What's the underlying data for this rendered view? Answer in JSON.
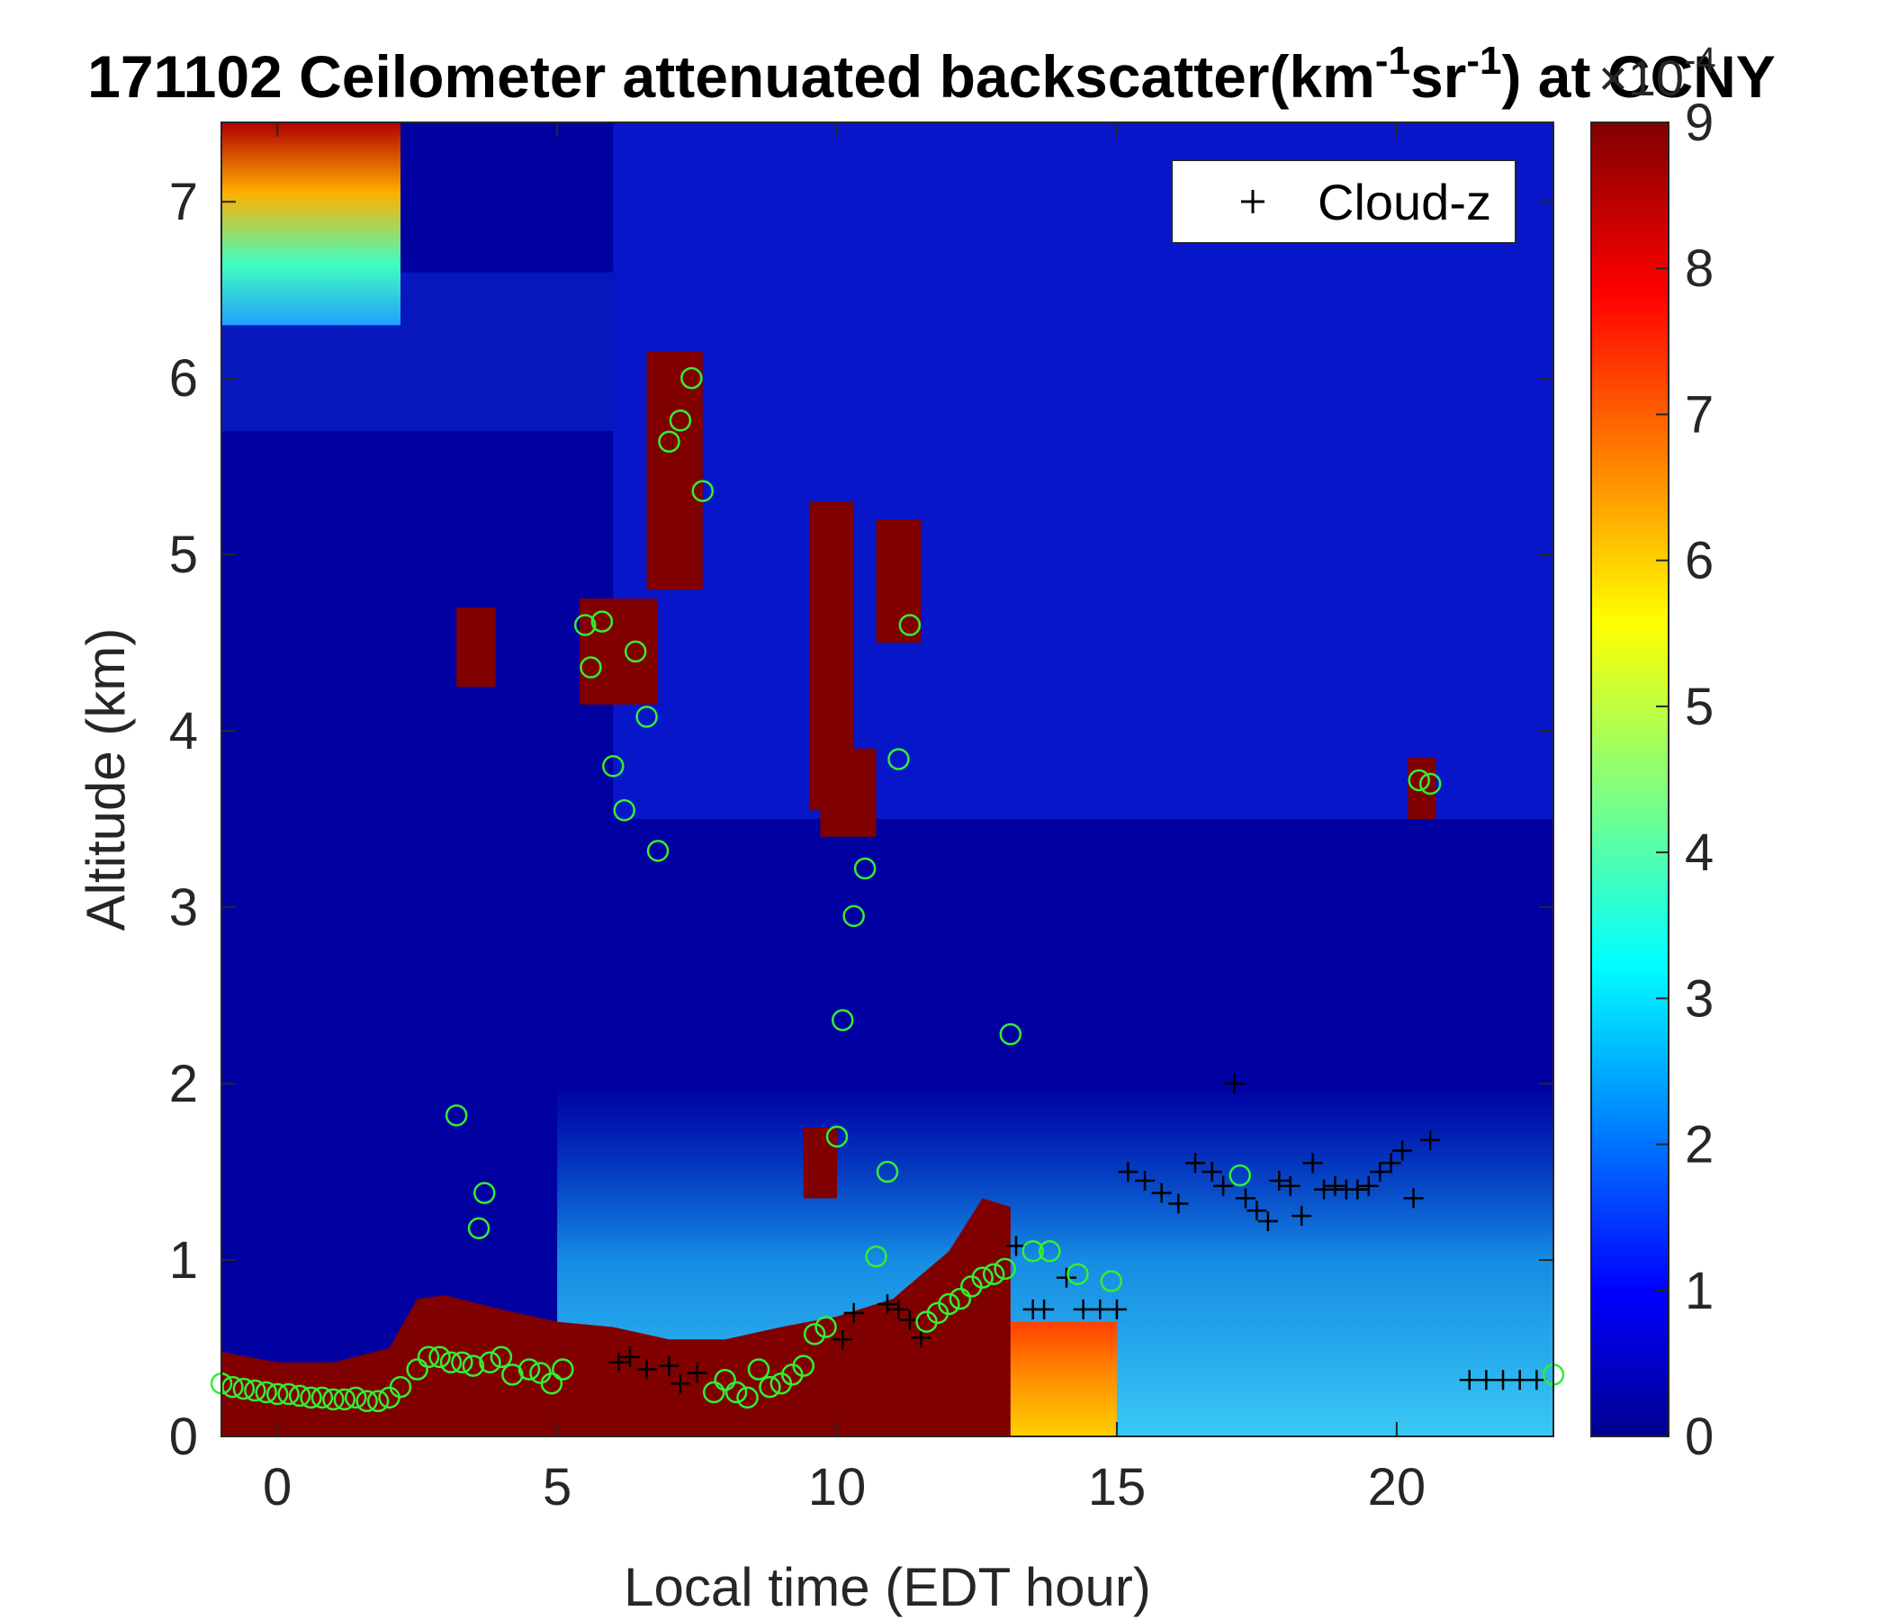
{
  "chart_data": {
    "type": "heatmap",
    "title_prefix": "171102 Ceilometer attenuated backscatter(km",
    "title_sup1": "-1",
    "title_mid": "sr",
    "title_sup2": "-1",
    "title_suffix": ") at CCNY",
    "xlabel": "Local time (EDT hour)",
    "ylabel": "Altitude (km)",
    "xlim": [
      -1,
      22.8
    ],
    "ylim": [
      0,
      7.45
    ],
    "xticks": [
      "0",
      "5",
      "10",
      "15",
      "20"
    ],
    "xtick_values": [
      0,
      5,
      10,
      15,
      20
    ],
    "yticks": [
      "0",
      "1",
      "2",
      "3",
      "4",
      "5",
      "6",
      "7"
    ],
    "ytick_values": [
      0,
      1,
      2,
      3,
      4,
      5,
      6,
      7
    ],
    "colorbar": {
      "ticks": [
        "0",
        "1",
        "2",
        "3",
        "4",
        "5",
        "6",
        "7",
        "8",
        "9"
      ],
      "tick_values": [
        0,
        1,
        2,
        3,
        4,
        5,
        6,
        7,
        8,
        9
      ],
      "range": [
        0,
        9
      ],
      "multiplier_base": "×10",
      "multiplier_exp": "-4",
      "colormap": "jet"
    },
    "legend": {
      "entries": [
        "Cloud-z"
      ],
      "location": "top-right",
      "marker": "+"
    },
    "boundary_layer_top": [
      [
        -1,
        0.48
      ],
      [
        0,
        0.42
      ],
      [
        1,
        0.42
      ],
      [
        2,
        0.5
      ],
      [
        2.5,
        0.78
      ],
      [
        3,
        0.8
      ],
      [
        4,
        0.72
      ],
      [
        5,
        0.65
      ],
      [
        6,
        0.62
      ],
      [
        7,
        0.55
      ],
      [
        8,
        0.55
      ],
      [
        9,
        0.62
      ],
      [
        10,
        0.68
      ],
      [
        11,
        0.78
      ],
      [
        12,
        1.05
      ],
      [
        12.6,
        1.35
      ],
      [
        13.1,
        1.3
      ]
    ],
    "aerosol_layers": [
      {
        "x": [
          3.2,
          3.9
        ],
        "y": [
          4.25,
          4.7
        ]
      },
      {
        "x": [
          5.4,
          6.8
        ],
        "y": [
          4.15,
          4.75
        ]
      },
      {
        "x": [
          6.6,
          7.6
        ],
        "y": [
          4.8,
          6.15
        ]
      },
      {
        "x": [
          9.5,
          10.3
        ],
        "y": [
          3.55,
          5.3
        ]
      },
      {
        "x": [
          9.7,
          10.7
        ],
        "y": [
          3.4,
          3.9
        ]
      },
      {
        "x": [
          10.7,
          11.5
        ],
        "y": [
          4.5,
          5.2
        ]
      },
      {
        "x": [
          9.4,
          10.0
        ],
        "y": [
          1.35,
          1.75
        ]
      },
      {
        "x": [
          20.2,
          20.7
        ],
        "y": [
          3.5,
          3.85
        ]
      }
    ],
    "series": [
      {
        "name": "Cloud-z",
        "marker": "+",
        "x": [
          6.1,
          6.3,
          6.6,
          7.0,
          7.2,
          7.5,
          10.1,
          10.3,
          10.9,
          11.1,
          11.3,
          11.5,
          13.2,
          13.5,
          13.7,
          14.1,
          14.4,
          14.7,
          15.0,
          15.2,
          15.5,
          15.8,
          16.1,
          16.4,
          16.7,
          16.9,
          17.1,
          17.3,
          17.5,
          17.7,
          17.9,
          18.1,
          18.3,
          18.5,
          18.7,
          18.9,
          19.1,
          19.3,
          19.5,
          19.7,
          19.9,
          20.1,
          20.3,
          20.6,
          21.3,
          21.6,
          21.9,
          22.2,
          22.5
        ],
        "y": [
          0.42,
          0.45,
          0.38,
          0.4,
          0.3,
          0.36,
          0.55,
          0.7,
          0.75,
          0.72,
          0.66,
          0.56,
          1.08,
          0.72,
          0.72,
          0.9,
          0.72,
          0.72,
          0.72,
          1.5,
          1.45,
          1.38,
          1.32,
          1.55,
          1.5,
          1.42,
          2.0,
          1.35,
          1.28,
          1.22,
          1.45,
          1.42,
          1.25,
          1.55,
          1.4,
          1.42,
          1.4,
          1.4,
          1.42,
          1.5,
          1.55,
          1.62,
          1.35,
          1.68,
          0.32,
          0.32,
          0.32,
          0.32,
          0.32
        ]
      },
      {
        "name": "",
        "marker": "o",
        "x": [
          -1.0,
          -0.8,
          -0.6,
          -0.4,
          -0.2,
          0.0,
          0.2,
          0.4,
          0.6,
          0.8,
          1.0,
          1.2,
          1.4,
          1.6,
          1.8,
          2.0,
          2.2,
          2.5,
          2.7,
          2.9,
          3.1,
          3.3,
          3.5,
          3.8,
          4.0,
          4.2,
          4.5,
          4.7,
          4.9,
          5.1,
          3.2,
          3.6,
          3.7,
          5.5,
          5.6,
          5.8,
          6.0,
          6.2,
          6.4,
          6.6,
          6.8,
          7.0,
          7.2,
          7.4,
          7.6,
          7.8,
          8.0,
          8.2,
          8.4,
          8.6,
          8.8,
          9.0,
          9.2,
          9.4,
          9.6,
          9.8,
          10.0,
          10.1,
          10.3,
          10.5,
          10.7,
          10.9,
          11.1,
          11.3,
          11.6,
          11.8,
          12.0,
          12.2,
          12.4,
          12.6,
          12.8,
          13.0,
          13.1,
          13.5,
          13.8,
          14.3,
          14.9,
          17.2,
          20.4,
          20.6,
          22.8
        ],
        "y": [
          0.3,
          0.28,
          0.27,
          0.26,
          0.25,
          0.24,
          0.24,
          0.23,
          0.22,
          0.22,
          0.21,
          0.21,
          0.22,
          0.2,
          0.2,
          0.22,
          0.28,
          0.38,
          0.45,
          0.45,
          0.42,
          0.42,
          0.4,
          0.42,
          0.45,
          0.35,
          0.38,
          0.36,
          0.3,
          0.38,
          1.82,
          1.18,
          1.38,
          4.6,
          4.36,
          4.62,
          3.8,
          3.55,
          4.45,
          4.08,
          3.32,
          5.64,
          5.76,
          6.0,
          5.36,
          0.25,
          0.32,
          0.25,
          0.22,
          0.38,
          0.28,
          0.3,
          0.35,
          0.4,
          0.58,
          0.62,
          1.7,
          2.36,
          2.95,
          3.22,
          1.02,
          1.5,
          3.84,
          4.6,
          0.65,
          0.7,
          0.75,
          0.78,
          0.85,
          0.9,
          0.92,
          0.95,
          2.28,
          1.05,
          1.05,
          0.92,
          0.88,
          1.48,
          3.72,
          3.7,
          0.35
        ]
      }
    ]
  }
}
